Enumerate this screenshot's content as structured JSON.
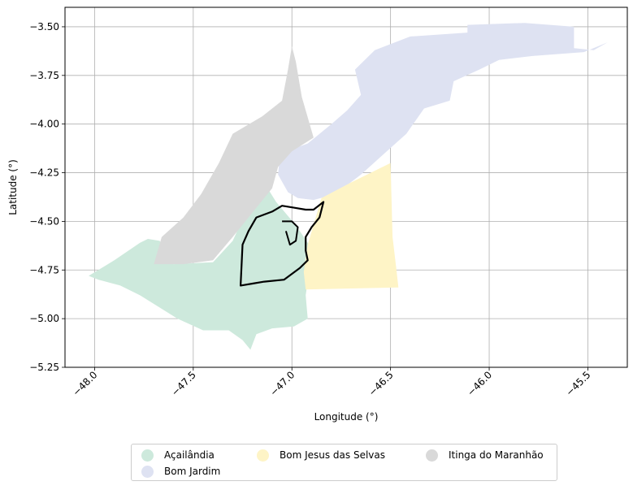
{
  "axes": {
    "xlabel": "Longitude (°)",
    "ylabel": "Latitude (°)",
    "xlim": [
      -48.15,
      -45.3
    ],
    "ylim": [
      -5.25,
      -3.4
    ],
    "xticks": [
      -48.0,
      -47.5,
      -47.0,
      -46.5,
      -46.0,
      -45.5
    ],
    "xtick_labels": [
      "−48.0",
      "−47.5",
      "−47.0",
      "−46.5",
      "−46.0",
      "−45.5"
    ],
    "yticks": [
      -3.5,
      -3.75,
      -4.0,
      -4.25,
      -4.5,
      -4.75,
      -5.0,
      -5.25
    ],
    "ytick_labels": [
      "−3.50",
      "−3.75",
      "−4.00",
      "−4.25",
      "−4.50",
      "−4.75",
      "−5.00",
      "−5.25"
    ],
    "grid": true,
    "xtick_rotation_deg": 45
  },
  "regions": [
    {
      "name": "Açailândia",
      "color": "#cde9dc",
      "coords": [
        [
          -48.03,
          -4.78
        ],
        [
          -47.9,
          -4.7
        ],
        [
          -47.77,
          -4.61
        ],
        [
          -47.73,
          -4.59
        ],
        [
          -47.67,
          -4.6
        ],
        [
          -47.6,
          -4.72
        ],
        [
          -47.4,
          -4.71
        ],
        [
          -47.3,
          -4.6
        ],
        [
          -47.2,
          -4.38
        ],
        [
          -47.16,
          -4.27
        ],
        [
          -47.08,
          -4.4
        ],
        [
          -46.98,
          -4.52
        ],
        [
          -46.9,
          -4.64
        ],
        [
          -46.91,
          -4.74
        ],
        [
          -46.93,
          -4.88
        ],
        [
          -46.92,
          -5.0
        ],
        [
          -46.99,
          -5.04
        ],
        [
          -47.1,
          -5.05
        ],
        [
          -47.18,
          -5.08
        ],
        [
          -47.21,
          -5.16
        ],
        [
          -47.25,
          -5.11
        ],
        [
          -47.32,
          -5.06
        ],
        [
          -47.45,
          -5.06
        ],
        [
          -47.58,
          -5.0
        ],
        [
          -47.77,
          -4.88
        ],
        [
          -47.87,
          -4.83
        ],
        [
          -47.98,
          -4.8
        ]
      ]
    },
    {
      "name": "Bom Jardim",
      "color": "#dee2f2",
      "coords": [
        [
          -47.07,
          -4.26
        ],
        [
          -47.06,
          -4.15
        ],
        [
          -46.92,
          -4.1
        ],
        [
          -46.8,
          -4.0
        ],
        [
          -46.72,
          -3.93
        ],
        [
          -46.65,
          -3.85
        ],
        [
          -46.68,
          -3.72
        ],
        [
          -46.58,
          -3.62
        ],
        [
          -46.4,
          -3.55
        ],
        [
          -46.11,
          -3.53
        ],
        [
          -46.11,
          -3.49
        ],
        [
          -45.82,
          -3.48
        ],
        [
          -45.57,
          -3.5
        ],
        [
          -45.57,
          -3.61
        ],
        [
          -45.47,
          -3.62
        ],
        [
          -45.4,
          -3.58
        ],
        [
          -45.52,
          -3.63
        ],
        [
          -45.78,
          -3.65
        ],
        [
          -45.95,
          -3.67
        ],
        [
          -46.05,
          -3.72
        ],
        [
          -46.18,
          -3.78
        ],
        [
          -46.2,
          -3.88
        ],
        [
          -46.33,
          -3.92
        ],
        [
          -46.42,
          -4.05
        ],
        [
          -46.53,
          -4.15
        ],
        [
          -46.65,
          -4.26
        ],
        [
          -46.78,
          -4.36
        ],
        [
          -46.89,
          -4.39
        ],
        [
          -46.97,
          -4.38
        ],
        [
          -47.02,
          -4.35
        ]
      ]
    },
    {
      "name": "Bom Jesus das Selvas",
      "color": "#fef4c6",
      "coords": [
        [
          -46.85,
          -4.38
        ],
        [
          -46.7,
          -4.3
        ],
        [
          -46.5,
          -4.2
        ],
        [
          -46.49,
          -4.58
        ],
        [
          -46.47,
          -4.75
        ],
        [
          -46.46,
          -4.84
        ],
        [
          -46.93,
          -4.85
        ],
        [
          -46.94,
          -4.76
        ],
        [
          -46.92,
          -4.62
        ]
      ]
    },
    {
      "name": "Itinga do Maranhão",
      "color": "#d9d9d9",
      "coords": [
        [
          -47.7,
          -4.72
        ],
        [
          -47.66,
          -4.58
        ],
        [
          -47.55,
          -4.48
        ],
        [
          -47.46,
          -4.36
        ],
        [
          -47.37,
          -4.2
        ],
        [
          -47.3,
          -4.05
        ],
        [
          -47.15,
          -3.96
        ],
        [
          -47.05,
          -3.88
        ],
        [
          -47.02,
          -3.72
        ],
        [
          -47.0,
          -3.6
        ],
        [
          -46.98,
          -3.68
        ],
        [
          -46.95,
          -3.86
        ],
        [
          -46.91,
          -4.0
        ],
        [
          -46.89,
          -4.07
        ],
        [
          -47.0,
          -4.14
        ],
        [
          -47.07,
          -4.22
        ],
        [
          -47.1,
          -4.33
        ],
        [
          -47.18,
          -4.43
        ],
        [
          -47.3,
          -4.58
        ],
        [
          -47.4,
          -4.7
        ],
        [
          -47.55,
          -4.72
        ]
      ]
    }
  ],
  "outline": {
    "color": "#000000",
    "coords": [
      [
        -47.26,
        -4.83
      ],
      [
        -47.25,
        -4.62
      ],
      [
        -47.22,
        -4.55
      ],
      [
        -47.18,
        -4.48
      ],
      [
        -47.1,
        -4.45
      ],
      [
        -47.05,
        -4.42
      ],
      [
        -46.99,
        -4.43
      ],
      [
        -46.93,
        -4.44
      ],
      [
        -46.89,
        -4.44
      ],
      [
        -46.84,
        -4.4
      ],
      [
        -46.86,
        -4.48
      ],
      [
        -46.9,
        -4.53
      ],
      [
        -46.93,
        -4.58
      ],
      [
        -46.93,
        -4.65
      ],
      [
        -46.92,
        -4.7
      ],
      [
        -46.96,
        -4.74
      ],
      [
        -47.04,
        -4.8
      ],
      [
        -47.14,
        -4.81
      ],
      [
        -47.2,
        -4.82
      ]
    ],
    "inner_coords": [
      [
        -47.05,
        -4.5
      ],
      [
        -47.0,
        -4.5
      ],
      [
        -46.97,
        -4.53
      ],
      [
        -46.98,
        -4.6
      ],
      [
        -47.01,
        -4.62
      ],
      [
        -47.03,
        -4.55
      ]
    ]
  },
  "legend": {
    "items": [
      {
        "label": "Açailândia",
        "color": "#cde9dc"
      },
      {
        "label": "Bom Jardim",
        "color": "#dee2f2"
      },
      {
        "label": "Bom Jesus das Selvas",
        "color": "#fef4c6"
      },
      {
        "label": "Itinga do Maranhão",
        "color": "#d9d9d9"
      }
    ],
    "placement": "below plot, 3 columns"
  }
}
